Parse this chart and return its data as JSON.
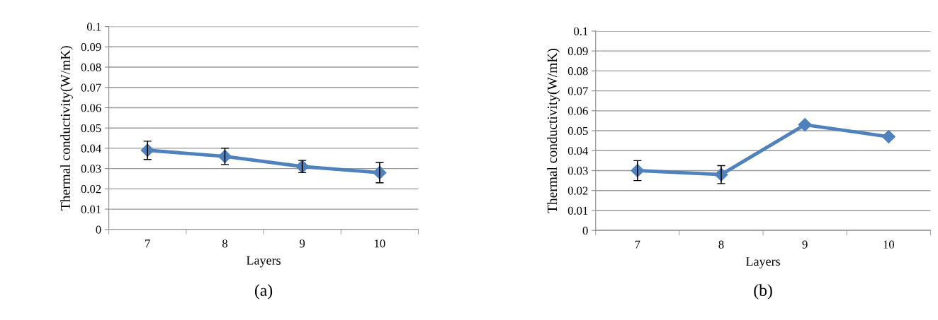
{
  "chart_data": [
    {
      "type": "line",
      "categories": [
        "7",
        "8",
        "9",
        "10"
      ],
      "xlabel": "Layers",
      "ylabel": "Thermal conductivity(W/mK)",
      "annotations": [
        "(a)"
      ],
      "series": [
        {
          "color": "#4f81bd",
          "values": [
            0.039,
            0.036,
            0.031,
            0.028
          ],
          "errors": [
            0.0045,
            0.004,
            0.003,
            0.005
          ]
        }
      ],
      "ylim": [
        0,
        0.1
      ],
      "yticks": [
        0,
        0.01,
        0.02,
        0.03,
        0.04,
        0.05,
        0.06,
        0.07,
        0.08,
        0.09,
        0.1
      ],
      "grid": "y",
      "marker": "diamond",
      "line_style": "solid",
      "legend": false
    },
    {
      "type": "line",
      "categories": [
        "7",
        "8",
        "9",
        "10"
      ],
      "xlabel": "Layers",
      "ylabel": "Thermal conductivity(W/mK)",
      "annotations": [
        "(b)"
      ],
      "series": [
        {
          "color": "#4f81bd",
          "values": [
            0.03,
            0.028,
            0.053,
            0.047
          ],
          "errors": [
            0.005,
            0.0045,
            null,
            null
          ]
        }
      ],
      "ylim": [
        0,
        0.1
      ],
      "yticks": [
        0,
        0.01,
        0.02,
        0.03,
        0.04,
        0.05,
        0.06,
        0.07,
        0.08,
        0.09,
        0.1
      ],
      "grid": "y",
      "marker": "diamond",
      "line_style": "solid",
      "legend": false
    }
  ]
}
